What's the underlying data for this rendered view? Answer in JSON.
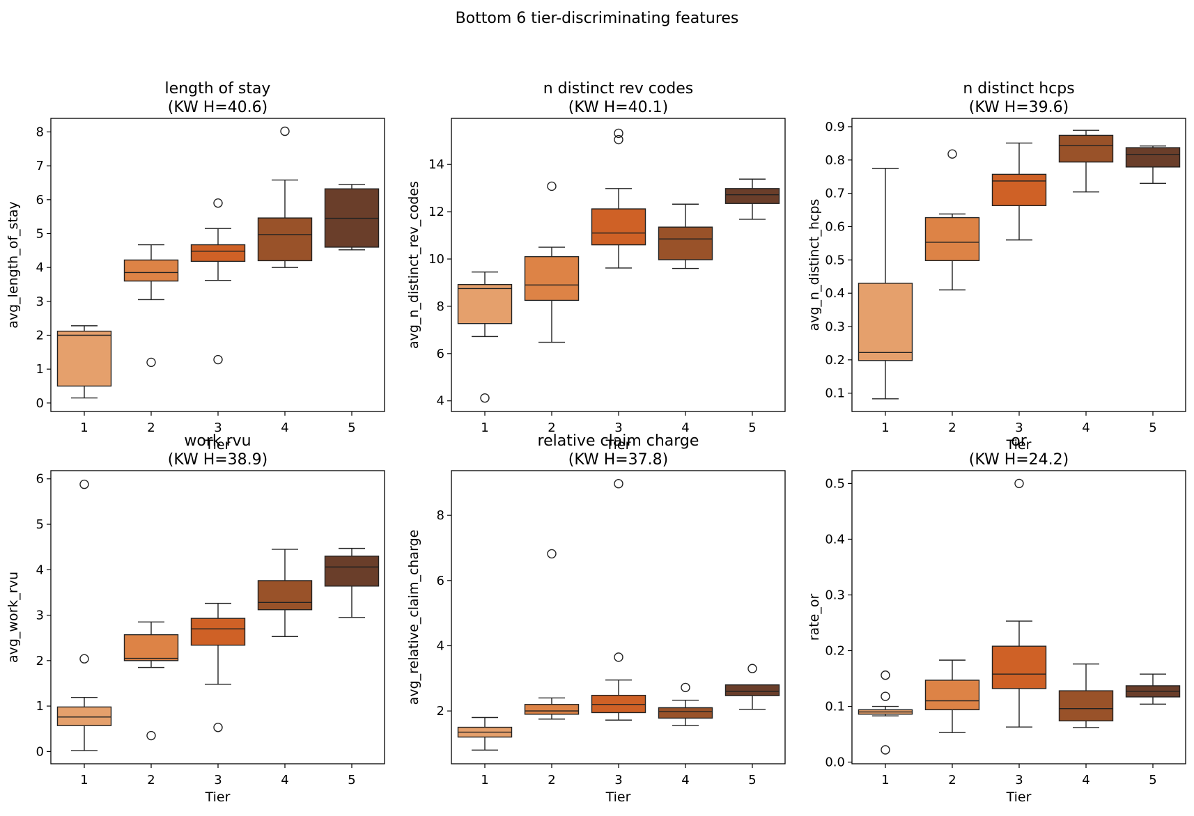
{
  "figure": {
    "title": "Bottom 6 tier-discriminating features"
  },
  "style": {
    "tier_colors": [
      "#e5a06c",
      "#dd8346",
      "#cf6126",
      "#995229",
      "#6a3e2a"
    ],
    "line_color": "#222222",
    "outlier_fill": "none"
  },
  "chart_data": [
    {
      "type": "box",
      "title_line1": "length of stay",
      "title_line2": "(KW H=40.6)",
      "xlabel": "Tier",
      "ylabel": "avg_length_of_stay",
      "categories": [
        "1",
        "2",
        "3",
        "4",
        "5"
      ],
      "ylim": [
        -0.25,
        8.4
      ],
      "yticks": [
        0,
        1,
        2,
        3,
        4,
        5,
        6,
        7,
        8
      ],
      "boxes": [
        {
          "whislo": 0.15,
          "q1": 0.5,
          "med": 2.0,
          "q3": 2.12,
          "whishi": 2.28,
          "fliers": []
        },
        {
          "whislo": 3.05,
          "q1": 3.6,
          "med": 3.85,
          "q3": 4.22,
          "whishi": 4.67,
          "fliers": [
            1.2
          ]
        },
        {
          "whislo": 3.62,
          "q1": 4.18,
          "med": 4.48,
          "q3": 4.67,
          "whishi": 5.15,
          "fliers": [
            5.9,
            1.28
          ]
        },
        {
          "whislo": 4.0,
          "q1": 4.2,
          "med": 4.97,
          "q3": 5.46,
          "whishi": 6.58,
          "fliers": [
            8.02
          ]
        },
        {
          "whislo": 4.52,
          "q1": 4.6,
          "med": 5.45,
          "q3": 6.32,
          "whishi": 6.45,
          "fliers": []
        }
      ]
    },
    {
      "type": "box",
      "title_line1": "n distinct rev codes",
      "title_line2": "(KW H=40.1)",
      "xlabel": "Tier",
      "ylabel": "avg_n_distinct_rev_codes",
      "categories": [
        "1",
        "2",
        "3",
        "4",
        "5"
      ],
      "ylim": [
        3.55,
        15.95
      ],
      "yticks": [
        4,
        6,
        8,
        10,
        12,
        14
      ],
      "boxes": [
        {
          "whislo": 6.72,
          "q1": 7.27,
          "med": 8.75,
          "q3": 8.92,
          "whishi": 9.45,
          "fliers": [
            4.12
          ]
        },
        {
          "whislo": 6.48,
          "q1": 8.25,
          "med": 8.9,
          "q3": 10.1,
          "whishi": 10.5,
          "fliers": [
            13.08
          ]
        },
        {
          "whislo": 9.62,
          "q1": 10.6,
          "med": 11.1,
          "q3": 12.12,
          "whishi": 12.98,
          "fliers": [
            15.32,
            15.05
          ]
        },
        {
          "whislo": 9.6,
          "q1": 9.97,
          "med": 10.85,
          "q3": 11.35,
          "whishi": 12.32,
          "fliers": []
        },
        {
          "whislo": 11.68,
          "q1": 12.35,
          "med": 12.72,
          "q3": 12.98,
          "whishi": 13.38,
          "fliers": []
        }
      ]
    },
    {
      "type": "box",
      "title_line1": "n distinct hcps",
      "title_line2": "(KW H=39.6)",
      "xlabel": "Tier",
      "ylabel": "avg_n_distinct_hcps",
      "categories": [
        "1",
        "2",
        "3",
        "4",
        "5"
      ],
      "ylim": [
        0.045,
        0.925
      ],
      "yticks": [
        0.1,
        0.2,
        0.3,
        0.4,
        0.5,
        0.6,
        0.7,
        0.8,
        0.9
      ],
      "ytick_labels": [
        "0.1",
        "0.2",
        "0.3",
        "0.4",
        "0.5",
        "0.6",
        "0.7",
        "0.8",
        "0.9"
      ],
      "boxes": [
        {
          "whislo": 0.083,
          "q1": 0.198,
          "med": 0.222,
          "q3": 0.43,
          "whishi": 0.775,
          "fliers": []
        },
        {
          "whislo": 0.41,
          "q1": 0.498,
          "med": 0.553,
          "q3": 0.627,
          "whishi": 0.638,
          "fliers": [
            0.818
          ]
        },
        {
          "whislo": 0.56,
          "q1": 0.663,
          "med": 0.737,
          "q3": 0.757,
          "whishi": 0.851,
          "fliers": []
        },
        {
          "whislo": 0.704,
          "q1": 0.794,
          "med": 0.843,
          "q3": 0.874,
          "whishi": 0.889,
          "fliers": []
        },
        {
          "whislo": 0.73,
          "q1": 0.779,
          "med": 0.817,
          "q3": 0.837,
          "whishi": 0.842,
          "fliers": []
        }
      ]
    },
    {
      "type": "box",
      "title_line1": "work rvu",
      "title_line2": "(KW H=38.9)",
      "xlabel": "Tier",
      "ylabel": "avg_work_rvu",
      "categories": [
        "1",
        "2",
        "3",
        "4",
        "5"
      ],
      "ylim": [
        -0.27,
        6.18
      ],
      "yticks": [
        0,
        1,
        2,
        3,
        4,
        5,
        6
      ],
      "boxes": [
        {
          "whislo": 0.02,
          "q1": 0.57,
          "med": 0.76,
          "q3": 0.98,
          "whishi": 1.19,
          "fliers": [
            5.88,
            2.04
          ]
        },
        {
          "whislo": 1.85,
          "q1": 2.0,
          "med": 2.05,
          "q3": 2.57,
          "whishi": 2.85,
          "fliers": [
            0.35
          ]
        },
        {
          "whislo": 1.48,
          "q1": 2.34,
          "med": 2.7,
          "q3": 2.93,
          "whishi": 3.26,
          "fliers": [
            0.53
          ]
        },
        {
          "whislo": 2.53,
          "q1": 3.12,
          "med": 3.28,
          "q3": 3.76,
          "whishi": 4.45,
          "fliers": []
        },
        {
          "whislo": 2.95,
          "q1": 3.64,
          "med": 4.06,
          "q3": 4.3,
          "whishi": 4.47,
          "fliers": []
        }
      ]
    },
    {
      "type": "box",
      "title_line1": "relative claim charge",
      "title_line2": "(KW H=37.8)",
      "xlabel": "Tier",
      "ylabel": "avg_relative_claim_charge",
      "categories": [
        "1",
        "2",
        "3",
        "4",
        "5"
      ],
      "ylim": [
        0.38,
        9.37
      ],
      "yticks": [
        2,
        4,
        6,
        8
      ],
      "boxes": [
        {
          "whislo": 0.8,
          "q1": 1.2,
          "med": 1.35,
          "q3": 1.5,
          "whishi": 1.8,
          "fliers": []
        },
        {
          "whislo": 1.75,
          "q1": 1.9,
          "med": 2.0,
          "q3": 2.2,
          "whishi": 2.4,
          "fliers": [
            6.82
          ]
        },
        {
          "whislo": 1.72,
          "q1": 1.95,
          "med": 2.2,
          "q3": 2.48,
          "whishi": 2.95,
          "fliers": [
            8.97,
            3.65
          ]
        },
        {
          "whislo": 1.55,
          "q1": 1.78,
          "med": 1.98,
          "q3": 2.1,
          "whishi": 2.33,
          "fliers": [
            2.72
          ]
        },
        {
          "whislo": 2.05,
          "q1": 2.47,
          "med": 2.6,
          "q3": 2.8,
          "whishi": 2.8,
          "fliers": [
            3.3
          ]
        }
      ]
    },
    {
      "type": "box",
      "title_line1": "or",
      "title_line2": "(KW H=24.2)",
      "xlabel": "Tier",
      "ylabel": "rate_or",
      "categories": [
        "1",
        "2",
        "3",
        "4",
        "5"
      ],
      "ylim": [
        -0.003,
        0.523
      ],
      "yticks": [
        0,
        0.1,
        0.2,
        0.3,
        0.4,
        0.5
      ],
      "ytick_labels": [
        "0.0",
        "0.1",
        "0.2",
        "0.3",
        "0.4",
        "0.5"
      ],
      "boxes": [
        {
          "whislo": 0.083,
          "q1": 0.086,
          "med": 0.09,
          "q3": 0.094,
          "whishi": 0.1,
          "fliers": [
            0.156,
            0.118,
            0.022
          ]
        },
        {
          "whislo": 0.053,
          "q1": 0.094,
          "med": 0.11,
          "q3": 0.147,
          "whishi": 0.183,
          "fliers": []
        },
        {
          "whislo": 0.063,
          "q1": 0.132,
          "med": 0.158,
          "q3": 0.208,
          "whishi": 0.253,
          "fliers": [
            0.5
          ]
        },
        {
          "whislo": 0.062,
          "q1": 0.074,
          "med": 0.096,
          "q3": 0.128,
          "whishi": 0.176,
          "fliers": []
        },
        {
          "whislo": 0.104,
          "q1": 0.117,
          "med": 0.127,
          "q3": 0.137,
          "whishi": 0.158,
          "fliers": []
        }
      ]
    }
  ]
}
